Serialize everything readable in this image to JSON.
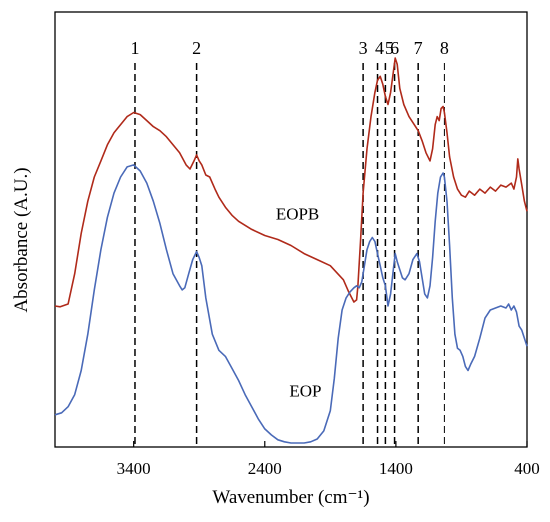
{
  "chart_data": {
    "type": "line",
    "title": "",
    "xlabel": "Wavenumber (cm⁻¹)",
    "ylabel": "Absorbance (A.U.)",
    "xlim": [
      4000,
      400
    ],
    "x_reversed": true,
    "y_ticks_shown": false,
    "grid": false,
    "x_ticks": [
      3400,
      2400,
      1400,
      400
    ],
    "colors": {
      "EOPB": "#b02a1a",
      "EOP": "#4a6ab8",
      "guide": "#000000"
    },
    "peak_lines": [
      {
        "label": "1",
        "x": 3390
      },
      {
        "label": "2",
        "x": 2920
      },
      {
        "label": "3",
        "x": 1650
      },
      {
        "label": "4",
        "x": 1540
      },
      {
        "label": "5",
        "x": 1480
      },
      {
        "label": "6",
        "x": 1410
      },
      {
        "label": "7",
        "x": 1230
      },
      {
        "label": "8",
        "x": 1030
      }
    ],
    "series": [
      {
        "name": "EOPB",
        "label_at": [
          2150,
          0.555
        ],
        "points": [
          [
            4000,
            0.34
          ],
          [
            3960,
            0.338
          ],
          [
            3900,
            0.345
          ],
          [
            3850,
            0.42
          ],
          [
            3800,
            0.52
          ],
          [
            3750,
            0.6
          ],
          [
            3700,
            0.66
          ],
          [
            3650,
            0.7
          ],
          [
            3600,
            0.74
          ],
          [
            3550,
            0.77
          ],
          [
            3500,
            0.79
          ],
          [
            3450,
            0.81
          ],
          [
            3400,
            0.82
          ],
          [
            3350,
            0.815
          ],
          [
            3300,
            0.8
          ],
          [
            3250,
            0.785
          ],
          [
            3200,
            0.775
          ],
          [
            3150,
            0.76
          ],
          [
            3100,
            0.74
          ],
          [
            3050,
            0.72
          ],
          [
            3000,
            0.69
          ],
          [
            2970,
            0.68
          ],
          [
            2940,
            0.7
          ],
          [
            2920,
            0.715
          ],
          [
            2900,
            0.7
          ],
          [
            2880,
            0.69
          ],
          [
            2850,
            0.665
          ],
          [
            2820,
            0.66
          ],
          [
            2780,
            0.63
          ],
          [
            2750,
            0.61
          ],
          [
            2700,
            0.585
          ],
          [
            2650,
            0.565
          ],
          [
            2600,
            0.55
          ],
          [
            2500,
            0.53
          ],
          [
            2400,
            0.515
          ],
          [
            2300,
            0.505
          ],
          [
            2200,
            0.49
          ],
          [
            2100,
            0.47
          ],
          [
            2000,
            0.455
          ],
          [
            1900,
            0.44
          ],
          [
            1800,
            0.405
          ],
          [
            1760,
            0.375
          ],
          [
            1720,
            0.35
          ],
          [
            1700,
            0.355
          ],
          [
            1690,
            0.39
          ],
          [
            1670,
            0.5
          ],
          [
            1650,
            0.62
          ],
          [
            1620,
            0.73
          ],
          [
            1590,
            0.81
          ],
          [
            1560,
            0.87
          ],
          [
            1540,
            0.9
          ],
          [
            1520,
            0.91
          ],
          [
            1500,
            0.89
          ],
          [
            1480,
            0.86
          ],
          [
            1460,
            0.84
          ],
          [
            1440,
            0.87
          ],
          [
            1420,
            0.92
          ],
          [
            1405,
            0.955
          ],
          [
            1390,
            0.94
          ],
          [
            1370,
            0.88
          ],
          [
            1340,
            0.84
          ],
          [
            1300,
            0.81
          ],
          [
            1260,
            0.79
          ],
          [
            1230,
            0.775
          ],
          [
            1200,
            0.75
          ],
          [
            1170,
            0.72
          ],
          [
            1140,
            0.7
          ],
          [
            1120,
            0.73
          ],
          [
            1100,
            0.79
          ],
          [
            1085,
            0.81
          ],
          [
            1070,
            0.8
          ],
          [
            1055,
            0.83
          ],
          [
            1040,
            0.835
          ],
          [
            1030,
            0.82
          ],
          [
            1010,
            0.77
          ],
          [
            990,
            0.71
          ],
          [
            960,
            0.66
          ],
          [
            930,
            0.63
          ],
          [
            900,
            0.615
          ],
          [
            870,
            0.61
          ],
          [
            840,
            0.625
          ],
          [
            800,
            0.615
          ],
          [
            760,
            0.63
          ],
          [
            720,
            0.62
          ],
          [
            680,
            0.635
          ],
          [
            640,
            0.625
          ],
          [
            600,
            0.64
          ],
          [
            560,
            0.635
          ],
          [
            520,
            0.645
          ],
          [
            500,
            0.63
          ],
          [
            480,
            0.66
          ],
          [
            470,
            0.705
          ],
          [
            460,
            0.68
          ],
          [
            440,
            0.64
          ],
          [
            420,
            0.6
          ],
          [
            400,
            0.575
          ]
        ]
      },
      {
        "name": "EOP",
        "label_at": [
          2090,
          0.115
        ],
        "points": [
          [
            4000,
            0.07
          ],
          [
            3950,
            0.075
          ],
          [
            3900,
            0.09
          ],
          [
            3850,
            0.12
          ],
          [
            3800,
            0.18
          ],
          [
            3750,
            0.27
          ],
          [
            3700,
            0.38
          ],
          [
            3650,
            0.48
          ],
          [
            3600,
            0.56
          ],
          [
            3550,
            0.62
          ],
          [
            3500,
            0.66
          ],
          [
            3450,
            0.685
          ],
          [
            3400,
            0.69
          ],
          [
            3350,
            0.675
          ],
          [
            3300,
            0.645
          ],
          [
            3250,
            0.6
          ],
          [
            3200,
            0.545
          ],
          [
            3150,
            0.48
          ],
          [
            3100,
            0.42
          ],
          [
            3050,
            0.39
          ],
          [
            3030,
            0.38
          ],
          [
            3010,
            0.385
          ],
          [
            2980,
            0.42
          ],
          [
            2950,
            0.455
          ],
          [
            2920,
            0.475
          ],
          [
            2900,
            0.46
          ],
          [
            2880,
            0.44
          ],
          [
            2850,
            0.36
          ],
          [
            2800,
            0.27
          ],
          [
            2750,
            0.23
          ],
          [
            2700,
            0.215
          ],
          [
            2650,
            0.185
          ],
          [
            2600,
            0.155
          ],
          [
            2550,
            0.12
          ],
          [
            2500,
            0.09
          ],
          [
            2450,
            0.06
          ],
          [
            2400,
            0.035
          ],
          [
            2350,
            0.02
          ],
          [
            2300,
            0.008
          ],
          [
            2250,
            0.003
          ],
          [
            2200,
            0.0
          ],
          [
            2150,
            0.0
          ],
          [
            2100,
            0.0
          ],
          [
            2050,
            0.003
          ],
          [
            2000,
            0.01
          ],
          [
            1950,
            0.03
          ],
          [
            1900,
            0.08
          ],
          [
            1870,
            0.16
          ],
          [
            1840,
            0.26
          ],
          [
            1810,
            0.33
          ],
          [
            1780,
            0.36
          ],
          [
            1750,
            0.375
          ],
          [
            1720,
            0.385
          ],
          [
            1700,
            0.39
          ],
          [
            1680,
            0.385
          ],
          [
            1660,
            0.4
          ],
          [
            1640,
            0.44
          ],
          [
            1620,
            0.48
          ],
          [
            1600,
            0.5
          ],
          [
            1580,
            0.51
          ],
          [
            1560,
            0.5
          ],
          [
            1540,
            0.47
          ],
          [
            1520,
            0.44
          ],
          [
            1500,
            0.41
          ],
          [
            1480,
            0.39
          ],
          [
            1460,
            0.34
          ],
          [
            1440,
            0.37
          ],
          [
            1420,
            0.43
          ],
          [
            1405,
            0.47
          ],
          [
            1390,
            0.45
          ],
          [
            1370,
            0.43
          ],
          [
            1350,
            0.41
          ],
          [
            1330,
            0.405
          ],
          [
            1300,
            0.42
          ],
          [
            1270,
            0.455
          ],
          [
            1240,
            0.47
          ],
          [
            1220,
            0.45
          ],
          [
            1200,
            0.41
          ],
          [
            1180,
            0.37
          ],
          [
            1160,
            0.36
          ],
          [
            1140,
            0.39
          ],
          [
            1120,
            0.46
          ],
          [
            1100,
            0.55
          ],
          [
            1080,
            0.62
          ],
          [
            1060,
            0.66
          ],
          [
            1040,
            0.67
          ],
          [
            1030,
            0.66
          ],
          [
            1010,
            0.6
          ],
          [
            990,
            0.49
          ],
          [
            970,
            0.36
          ],
          [
            950,
            0.27
          ],
          [
            930,
            0.235
          ],
          [
            910,
            0.23
          ],
          [
            890,
            0.215
          ],
          [
            870,
            0.19
          ],
          [
            850,
            0.18
          ],
          [
            830,
            0.195
          ],
          [
            800,
            0.215
          ],
          [
            760,
            0.26
          ],
          [
            720,
            0.31
          ],
          [
            680,
            0.33
          ],
          [
            640,
            0.335
          ],
          [
            600,
            0.34
          ],
          [
            560,
            0.335
          ],
          [
            540,
            0.345
          ],
          [
            520,
            0.33
          ],
          [
            500,
            0.34
          ],
          [
            480,
            0.325
          ],
          [
            460,
            0.29
          ],
          [
            440,
            0.28
          ],
          [
            420,
            0.26
          ],
          [
            400,
            0.24
          ]
        ]
      }
    ]
  }
}
